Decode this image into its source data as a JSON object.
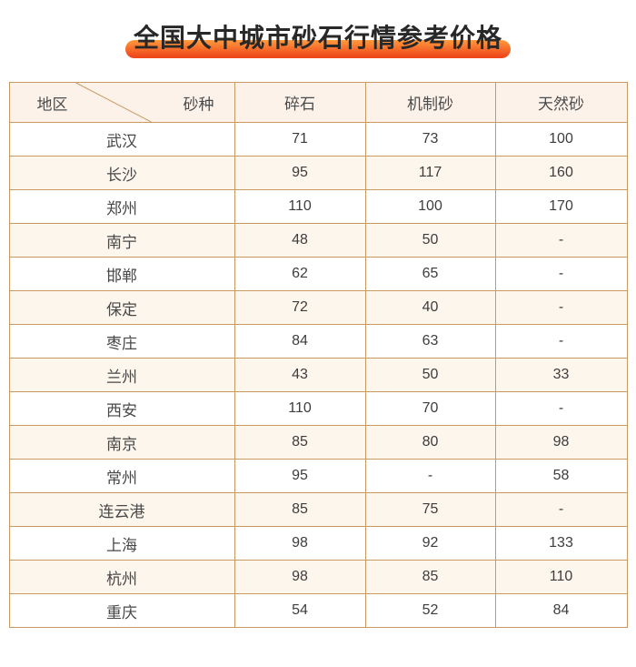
{
  "title": "全国大中城市砂石行情参考价格",
  "colors": {
    "highlight_top": "#ff9a3d",
    "highlight_bottom": "#ef481b",
    "table_border": "#c79a62",
    "header_bg": "#fcf2ea",
    "stripe_bg": "#fdf6ed",
    "title_text": "#282828",
    "cell_text": "#3d3d3d"
  },
  "table": {
    "corner": {
      "left_label": "地区",
      "right_label": "砂种"
    },
    "columns": [
      "碎石",
      "机制砂",
      "天然砂"
    ],
    "rows": [
      {
        "city": "武汉",
        "values": [
          "71",
          "73",
          "100"
        ]
      },
      {
        "city": "长沙",
        "values": [
          "95",
          "117",
          "160"
        ]
      },
      {
        "city": "郑州",
        "values": [
          "110",
          "100",
          "170"
        ]
      },
      {
        "city": "南宁",
        "values": [
          "48",
          "50",
          "-"
        ]
      },
      {
        "city": "邯郸",
        "values": [
          "62",
          "65",
          "-"
        ]
      },
      {
        "city": "保定",
        "values": [
          "72",
          "40",
          "-"
        ]
      },
      {
        "city": "枣庄",
        "values": [
          "84",
          "63",
          "-"
        ]
      },
      {
        "city": "兰州",
        "values": [
          "43",
          "50",
          "33"
        ]
      },
      {
        "city": "西安",
        "values": [
          "110",
          "70",
          "-"
        ]
      },
      {
        "city": "南京",
        "values": [
          "85",
          "80",
          "98"
        ]
      },
      {
        "city": "常州",
        "values": [
          "95",
          "-",
          "58"
        ]
      },
      {
        "city": "连云港",
        "values": [
          "85",
          "75",
          "-"
        ]
      },
      {
        "city": "上海",
        "values": [
          "98",
          "92",
          "133"
        ]
      },
      {
        "city": "杭州",
        "values": [
          "98",
          "85",
          "110"
        ]
      },
      {
        "city": "重庆",
        "values": [
          "54",
          "52",
          "84"
        ]
      }
    ]
  },
  "chart_data": {
    "type": "table",
    "title": "全国大中城市砂石行情参考价格",
    "columns": [
      "地区",
      "碎石",
      "机制砂",
      "天然砂"
    ],
    "rows": [
      [
        "武汉",
        71,
        73,
        100
      ],
      [
        "长沙",
        95,
        117,
        160
      ],
      [
        "郑州",
        110,
        100,
        170
      ],
      [
        "南宁",
        48,
        50,
        "-"
      ],
      [
        "邯郸",
        62,
        65,
        "-"
      ],
      [
        "保定",
        72,
        40,
        "-"
      ],
      [
        "枣庄",
        84,
        63,
        "-"
      ],
      [
        "兰州",
        43,
        50,
        33
      ],
      [
        "西安",
        110,
        70,
        "-"
      ],
      [
        "南京",
        85,
        80,
        98
      ],
      [
        "常州",
        95,
        "-",
        58
      ],
      [
        "连云港",
        85,
        75,
        "-"
      ],
      [
        "上海",
        98,
        92,
        133
      ],
      [
        "杭州",
        98,
        85,
        110
      ],
      [
        "重庆",
        54,
        52,
        84
      ]
    ]
  }
}
